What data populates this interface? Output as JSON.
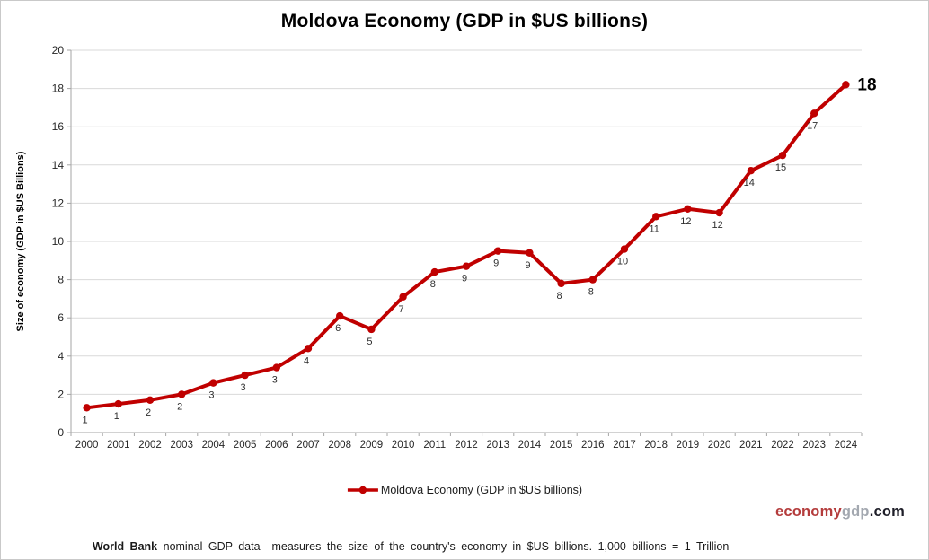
{
  "title": "Moldova Economy (GDP in $US billions)",
  "y_axis_label": "Size of economy (GDP in $US Billions)",
  "legend": {
    "label": "Moldova Economy (GDP in $US billions)"
  },
  "footnote": {
    "bold": "World Bank",
    "text": " nominal GDP data  measures the size of the country's economy in $US billions. 1,000 billions = 1 Trillion"
  },
  "branding": {
    "economy": "economy",
    "gdp": "gdp",
    "com": ".com"
  },
  "colors": {
    "line": "#C00000",
    "grid": "#D9D9D9",
    "axis": "#A6A6A6",
    "tick_label": "#262626",
    "point_label": "#2e2e2e",
    "last_label": "#000000",
    "brand_red": "#B43C3C",
    "brand_gray": "#A3A8B0",
    "brand_dark": "#1E1E28"
  },
  "chart_data": {
    "type": "line",
    "title": "Moldova Economy (GDP in $US billions)",
    "xlabel": "",
    "ylabel": "Size of economy (GDP in $US Billions)",
    "x": [
      "2000",
      "2001",
      "2002",
      "2003",
      "2004",
      "2005",
      "2006",
      "2007",
      "2008",
      "2009",
      "2010",
      "2011",
      "2012",
      "2013",
      "2014",
      "2015",
      "2016",
      "2017",
      "2018",
      "2019",
      "2020",
      "2021",
      "2022",
      "2023",
      "2024"
    ],
    "values": [
      1.3,
      1.5,
      1.7,
      2.0,
      2.6,
      3.0,
      3.4,
      4.4,
      6.1,
      5.4,
      7.1,
      8.4,
      8.7,
      9.5,
      9.4,
      7.8,
      8.0,
      9.6,
      11.3,
      11.7,
      11.5,
      13.7,
      14.5,
      16.7,
      18.2
    ],
    "point_labels": [
      "1",
      "1",
      "2",
      "2",
      "3",
      "3",
      "3",
      "4",
      "6",
      "5",
      "7",
      "8",
      "9",
      "9",
      "9",
      "8",
      "8",
      "10",
      "11",
      "12",
      "12",
      "14",
      "15",
      "17",
      "18"
    ],
    "ylim": [
      0,
      20
    ],
    "ytick_step": 2,
    "grid": true,
    "legend_entries": [
      "Moldova Economy (GDP in $US billions)"
    ],
    "legend_position": "bottom",
    "series_color": "#C00000"
  }
}
